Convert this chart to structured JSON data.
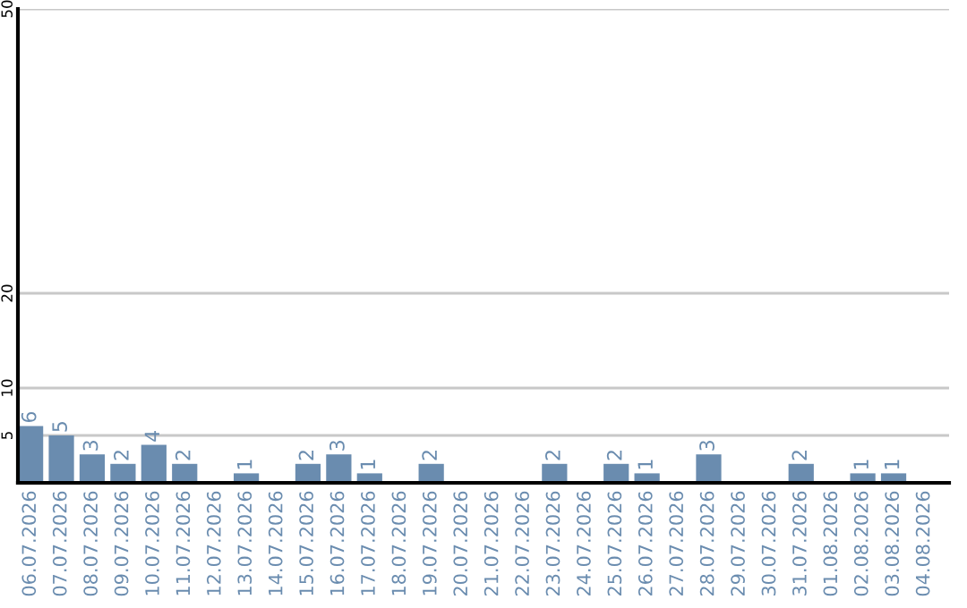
{
  "chart_data": {
    "type": "bar",
    "categories": [
      "06.07.2026",
      "07.07.2026",
      "08.07.2026",
      "09.07.2026",
      "10.07.2026",
      "11.07.2026",
      "12.07.2026",
      "13.07.2026",
      "14.07.2026",
      "15.07.2026",
      "16.07.2026",
      "17.07.2026",
      "18.07.2026",
      "19.07.2026",
      "20.07.2026",
      "21.07.2026",
      "22.07.2026",
      "23.07.2026",
      "24.07.2026",
      "25.07.2026",
      "26.07.2026",
      "27.07.2026",
      "28.07.2026",
      "29.07.2026",
      "30.07.2026",
      "31.07.2026",
      "01.08.2026",
      "02.08.2026",
      "03.08.2026",
      "04.08.2026"
    ],
    "values": [
      6,
      5,
      3,
      2,
      4,
      2,
      0,
      1,
      0,
      2,
      3,
      1,
      0,
      2,
      0,
      0,
      0,
      2,
      0,
      2,
      1,
      0,
      3,
      0,
      0,
      2,
      0,
      1,
      1,
      0
    ],
    "value_labels": [
      "6",
      "5",
      "3",
      "2",
      "4",
      "2",
      null,
      "1",
      null,
      "2",
      "3",
      "1",
      null,
      "2",
      null,
      null,
      null,
      "2",
      null,
      "2",
      "1",
      null,
      "3",
      null,
      null,
      "2",
      null,
      "1",
      "1",
      null
    ],
    "color": "#6a8caf",
    "ylim": [
      0,
      50
    ],
    "yticks": [
      5,
      10,
      20,
      50
    ],
    "grid": "y"
  }
}
